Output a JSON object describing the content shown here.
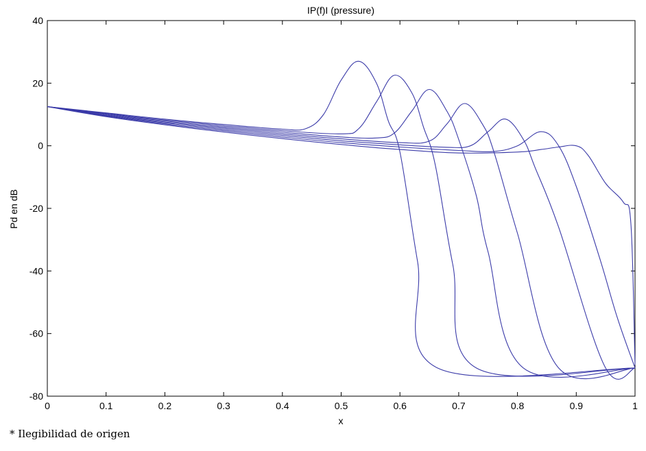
{
  "chart_data": {
    "type": "line",
    "title": "IP(f)I (pressure)",
    "xlabel": "x",
    "ylabel": "Pd en dB",
    "xlim": [
      0,
      1
    ],
    "ylim": [
      -80,
      40
    ],
    "xticks": [
      "0",
      "0.1",
      "0.2",
      "0.3",
      "0.4",
      "0.5",
      "0.6",
      "0.7",
      "0.8",
      "0.9",
      "1"
    ],
    "yticks": [
      "40",
      "20",
      "0",
      "-20",
      "-40",
      "-60",
      "-80"
    ],
    "grid": false,
    "legend": "none",
    "line_color": "#3a3aa8",
    "series": [
      {
        "x": [
          0,
          0.1,
          0.2,
          0.3,
          0.4,
          0.44,
          0.47,
          0.5,
          0.53,
          0.56,
          0.58,
          0.6,
          0.63,
          0.664,
          1.0
        ],
        "y": [
          12.5,
          10.5,
          8.5,
          6.8,
          5.3,
          5.5,
          10,
          21,
          27,
          20,
          8,
          -2,
          -37,
          -71,
          -71
        ]
      },
      {
        "x": [
          0,
          0.1,
          0.2,
          0.3,
          0.4,
          0.5,
          0.53,
          0.56,
          0.59,
          0.62,
          0.64,
          0.66,
          0.69,
          0.73,
          1.0
        ],
        "y": [
          12.5,
          10.3,
          8.2,
          6.4,
          4.8,
          3.8,
          5.5,
          14,
          22.5,
          17,
          6,
          -6,
          -38,
          -71,
          -71
        ]
      },
      {
        "x": [
          0,
          0.1,
          0.2,
          0.3,
          0.4,
          0.5,
          0.56,
          0.59,
          0.62,
          0.65,
          0.68,
          0.7,
          0.73,
          0.75,
          0.81,
          1.0
        ],
        "y": [
          12.5,
          10.1,
          7.9,
          6.0,
          4.3,
          2.8,
          2.5,
          4,
          11,
          18,
          11,
          2,
          -16,
          -34,
          -71,
          -71
        ]
      },
      {
        "x": [
          0,
          0.1,
          0.2,
          0.3,
          0.4,
          0.5,
          0.6,
          0.65,
          0.68,
          0.71,
          0.74,
          0.76,
          0.8,
          0.87,
          1.0
        ],
        "y": [
          12.5,
          9.9,
          7.6,
          5.6,
          3.8,
          2.2,
          1.0,
          1.5,
          7,
          13.5,
          7,
          -2,
          -28,
          -71,
          -71
        ]
      },
      {
        "x": [
          0,
          0.1,
          0.2,
          0.3,
          0.4,
          0.5,
          0.6,
          0.68,
          0.72,
          0.75,
          0.78,
          0.81,
          0.83,
          0.87,
          0.95,
          1.0
        ],
        "y": [
          12.5,
          9.7,
          7.3,
          5.2,
          3.3,
          1.6,
          0.3,
          -0.5,
          0,
          4.5,
          8.5,
          2,
          -7,
          -26,
          -71,
          -71
        ]
      },
      {
        "x": [
          0,
          0.1,
          0.2,
          0.3,
          0.4,
          0.5,
          0.6,
          0.7,
          0.76,
          0.8,
          0.84,
          0.87,
          0.9,
          0.94,
          0.97,
          1.0
        ],
        "y": [
          12.5,
          9.5,
          7.0,
          4.8,
          2.8,
          1.0,
          -0.4,
          -1.5,
          -1.8,
          0,
          4.5,
          0,
          -13,
          -36,
          -55,
          -71
        ]
      },
      {
        "x": [
          0,
          0.1,
          0.2,
          0.3,
          0.4,
          0.5,
          0.6,
          0.7,
          0.8,
          0.84,
          0.87,
          0.9,
          0.92,
          0.95,
          0.98,
          0.993,
          1.0
        ],
        "y": [
          12.5,
          9.3,
          6.7,
          4.4,
          2.3,
          0.4,
          -1.2,
          -2.3,
          -2.0,
          -1.2,
          -0.4,
          0,
          -3,
          -12,
          -18,
          -25,
          -70
        ]
      }
    ]
  },
  "footnote": "* Ilegibilidad de origen"
}
